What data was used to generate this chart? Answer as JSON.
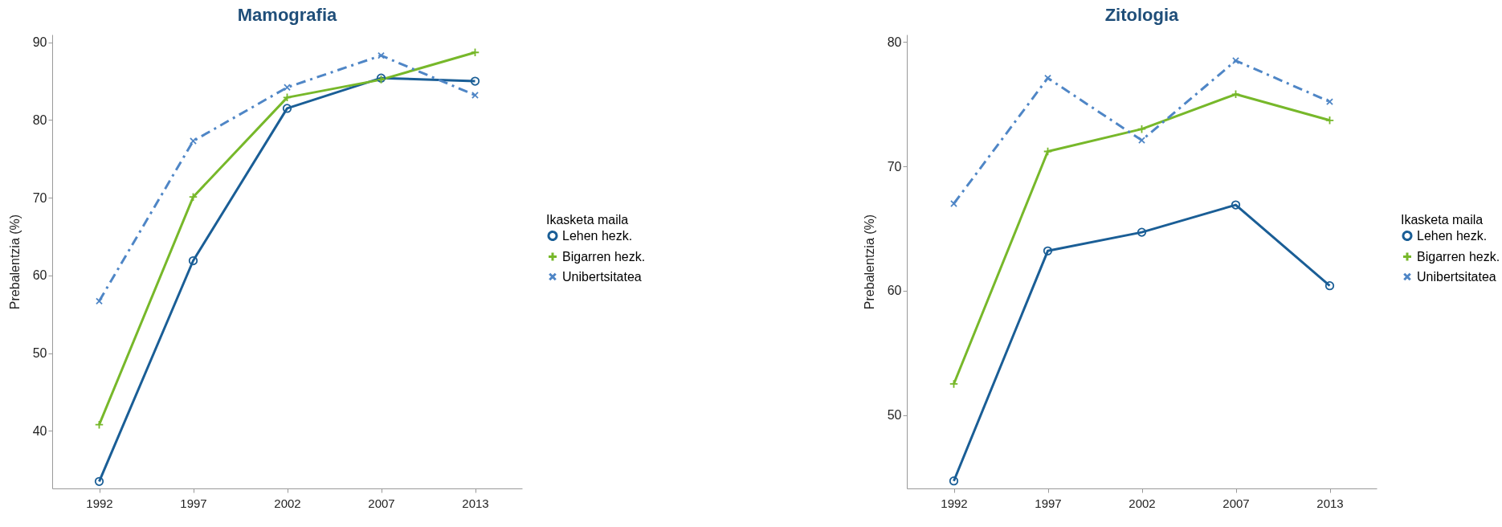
{
  "chart_data": [
    {
      "type": "line",
      "title": "Mamografia",
      "ylabel": "Prebalentzia (%)",
      "legend_title": "Ikasketa maila",
      "legend": "right",
      "grid": false,
      "categories": [
        "1992",
        "1997",
        "2002",
        "2007",
        "2013"
      ],
      "ylim": [
        32.6,
        91
      ],
      "yticks": [
        40,
        50,
        60,
        70,
        80,
        90
      ],
      "series": [
        {
          "name": "Lehen hezk.",
          "color": "#1a5e96",
          "marker": "circle",
          "line_style": "solid",
          "values": [
            33.5,
            61.9,
            81.5,
            85.4,
            85.0
          ]
        },
        {
          "name": "Bigarren hezk.",
          "color": "#77b82a",
          "marker": "cross",
          "line_style": "solid",
          "values": [
            40.8,
            70.1,
            82.9,
            85.2,
            88.7
          ]
        },
        {
          "name": "Unibertsitatea",
          "color": "#4f86c6",
          "marker": "x",
          "line_style": "dashdot",
          "values": [
            56.7,
            77.3,
            84.2,
            88.3,
            83.2
          ]
        }
      ]
    },
    {
      "type": "line",
      "title": "Zitologia",
      "ylabel": "Prebalentzia (%)",
      "legend_title": "Ikasketa maila",
      "legend": "right",
      "grid": false,
      "categories": [
        "1992",
        "1997",
        "2002",
        "2007",
        "2013"
      ],
      "ylim": [
        44.1,
        80.6
      ],
      "yticks": [
        50,
        60,
        70,
        80
      ],
      "series": [
        {
          "name": "Lehen hezk.",
          "color": "#1a5e96",
          "marker": "circle",
          "line_style": "solid",
          "values": [
            44.7,
            63.2,
            64.7,
            66.9,
            60.4
          ]
        },
        {
          "name": "Bigarren hezk.",
          "color": "#77b82a",
          "marker": "cross",
          "line_style": "solid",
          "values": [
            52.5,
            71.2,
            73.0,
            75.8,
            73.7
          ]
        },
        {
          "name": "Unibertsitatea",
          "color": "#4f86c6",
          "marker": "x",
          "line_style": "dashdot",
          "values": [
            67.0,
            77.1,
            72.1,
            78.5,
            75.2
          ]
        }
      ]
    }
  ]
}
